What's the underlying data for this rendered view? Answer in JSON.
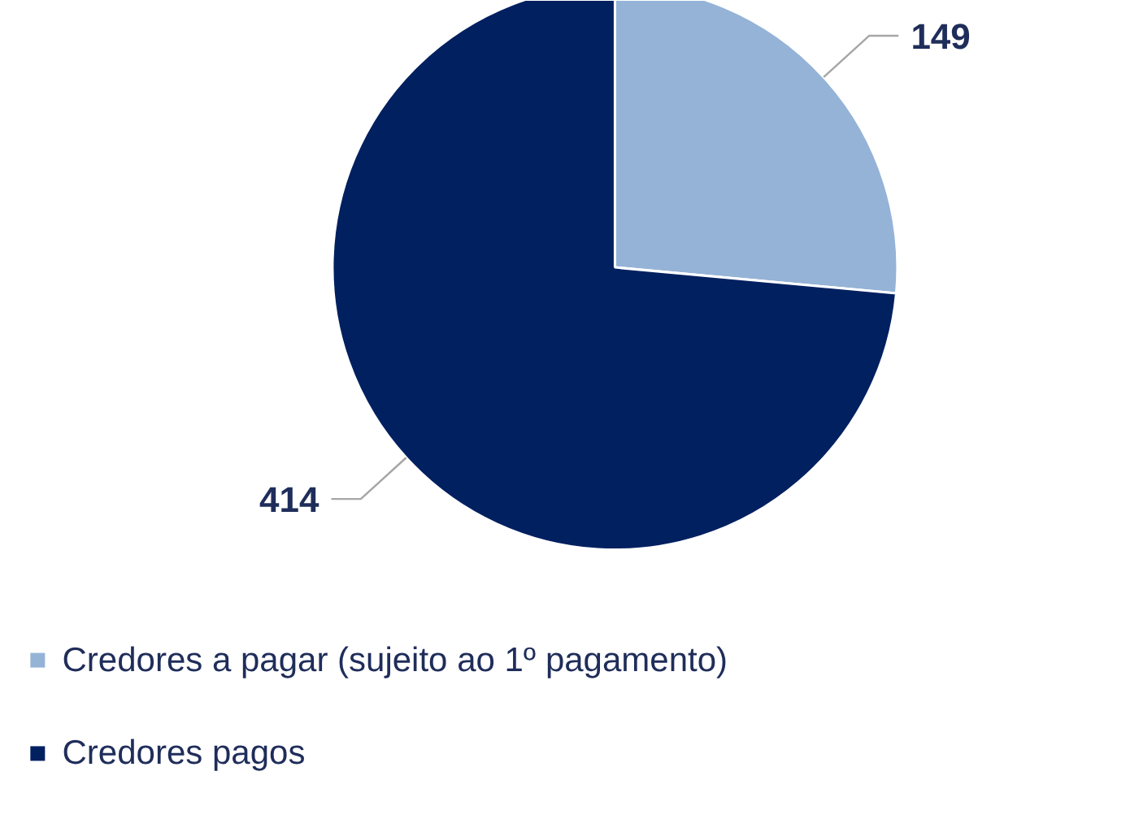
{
  "chart_data": {
    "type": "pie",
    "categories": [
      "Credores a pagar (sujeito ao 1º pagamento)",
      "Credores pagos"
    ],
    "values": [
      149,
      414
    ],
    "colors": [
      "#95b3d7",
      "#002060"
    ],
    "data_labels": true,
    "legend": "bottom"
  }
}
